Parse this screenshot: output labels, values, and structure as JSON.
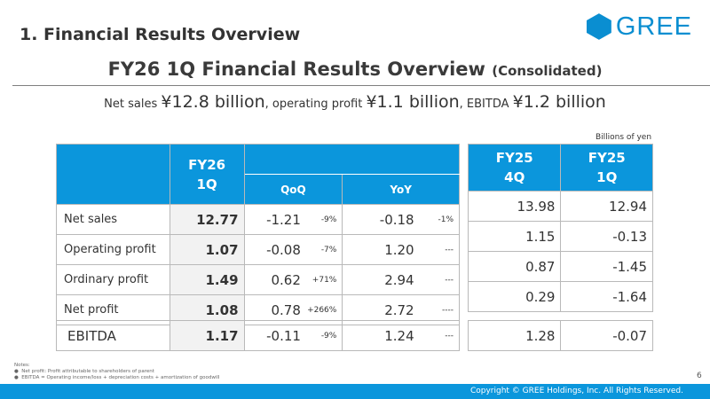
{
  "section_title": "1. Financial Results Overview",
  "brand": {
    "name": "GREE",
    "color": "#0a8ed1"
  },
  "main_title": {
    "text": "FY26 1Q Financial Results Overview",
    "sub": "(Consolidated)"
  },
  "summary": {
    "l1": "Net sales ",
    "v1": "¥12.8 billion",
    "l2": ", operating profit ",
    "v2": "¥1.1 billion",
    "l3": ", EBITDA ",
    "v3": "¥1.2 billion"
  },
  "unit_note": "Billions of yen",
  "table": {
    "head": {
      "cur_line1": "FY26",
      "cur_line2": "1Q",
      "qoq": "QoQ",
      "yoy": "YoY",
      "p1_line1": "FY25",
      "p1_line2": "4Q",
      "p2_line1": "FY25",
      "p2_line2": "1Q"
    },
    "rows": [
      {
        "label": "Net sales",
        "current": "12.77",
        "qoq": "-1.21",
        "qoq_pct": "-9%",
        "yoy": "-0.18",
        "yoy_pct": "-1%",
        "fy25_4q": "13.98",
        "fy25_1q": "12.94"
      },
      {
        "label": "Operating profit",
        "current": "1.07",
        "qoq": "-0.08",
        "qoq_pct": "-7%",
        "yoy": "1.20",
        "yoy_pct": "---",
        "fy25_4q": "1.15",
        "fy25_1q": "-0.13"
      },
      {
        "label": "Ordinary profit",
        "current": "1.49",
        "qoq": "0.62",
        "qoq_pct": "+71%",
        "yoy": "2.94",
        "yoy_pct": "---",
        "fy25_4q": "0.87",
        "fy25_1q": "-1.45"
      },
      {
        "label": "Net profit",
        "current": "1.08",
        "qoq": "0.78",
        "qoq_pct": "+266%",
        "yoy": "2.72",
        "yoy_pct": "----",
        "fy25_4q": "0.29",
        "fy25_1q": "-1.64"
      }
    ],
    "ebitda": {
      "label": "EBITDA",
      "current": "1.17",
      "qoq": "-0.11",
      "qoq_pct": "-9%",
      "yoy": "1.24",
      "yoy_pct": "---",
      "fy25_4q": "1.28",
      "fy25_1q": "-0.07"
    }
  },
  "notes": {
    "title": "Notes:",
    "items": [
      "Net profit: Profit attributable to shareholders of parent",
      "EBITDA = Operating income/loss + depreciation costs + amortization of goodwill"
    ]
  },
  "page_number": "6",
  "footer": {
    "copyright": "Copyright © GREE Holdings, Inc. All Rights Reserved."
  }
}
